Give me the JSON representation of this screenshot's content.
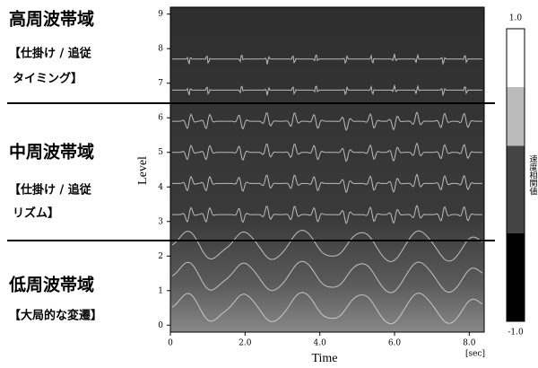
{
  "chart_data": {
    "type": "heatmap",
    "xlabel": "Time",
    "xunit": "[sec]",
    "ylabel": "Level",
    "xlim": [
      0,
      8.4
    ],
    "xticks": [
      0,
      {
        "value": 2,
        "label": "2.0"
      },
      {
        "value": 4,
        "label": "4.0"
      },
      {
        "value": 6,
        "label": "6.0"
      },
      {
        "value": 8,
        "label": "8.0"
      }
    ],
    "ylim": [
      -0.2,
      9.2
    ],
    "yticks": [
      0,
      1,
      2,
      3,
      4,
      5,
      6,
      7,
      8,
      9
    ],
    "colorbar": {
      "label": "速度相関値",
      "lim": [
        -1,
        1
      ],
      "ticks": [
        {
          "value": -1,
          "label": "-1.0"
        },
        {
          "value": 1,
          "label": "1.0"
        }
      ]
    },
    "bands": [
      {
        "title": "高周波帯域",
        "lines": [
          "【仕掛け / 追従",
          "タイミング】"
        ]
      },
      {
        "title": "中周波帯域",
        "lines": [
          "【仕掛け / 追従",
          "リズム】"
        ]
      },
      {
        "title": "低周波帯域",
        "lines": [
          "【大局的な変遷】"
        ]
      }
    ]
  }
}
